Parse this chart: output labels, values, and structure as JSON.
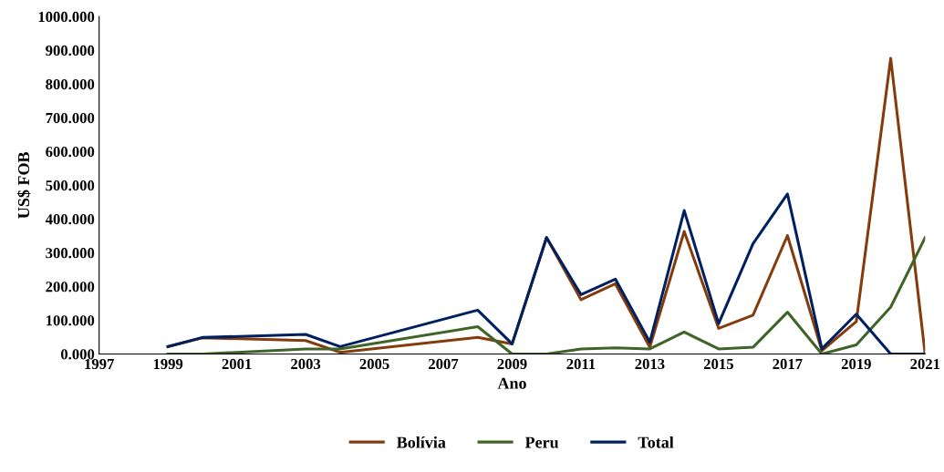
{
  "chart_data": {
    "type": "line",
    "xlabel": "Ano",
    "ylabel": "US$ FOB",
    "x": [
      1999,
      2000,
      2003,
      2004,
      2008,
      2009,
      2010,
      2011,
      2012,
      2013,
      2014,
      2015,
      2016,
      2017,
      2018,
      2019,
      2020,
      2021
    ],
    "series": [
      {
        "name": "Bolívia",
        "color": "#843c0c",
        "values": [
          22,
          48,
          40,
          5,
          49,
          30,
          345,
          161,
          208,
          20,
          363,
          76,
          115,
          351,
          10,
          96,
          876,
          0
        ]
      },
      {
        "name": "Peru",
        "color": "#3f6427",
        "values": [
          0,
          0,
          15,
          15,
          81,
          0,
          0,
          15,
          18,
          15,
          65,
          15,
          20,
          124,
          0,
          27,
          139,
          345
        ]
      },
      {
        "name": "Total",
        "color": "#002060",
        "values": [
          22,
          49,
          58,
          22,
          130,
          30,
          345,
          176,
          222,
          35,
          425,
          90,
          327,
          474,
          15,
          118,
          0,
          0
        ]
      }
    ],
    "xlim": [
      1997,
      2021
    ],
    "xticks": [
      1997,
      1999,
      2001,
      2003,
      2005,
      2007,
      2009,
      2011,
      2013,
      2015,
      2017,
      2019,
      2021
    ],
    "ylim": [
      0,
      1000
    ],
    "yticks": [
      {
        "value": 0,
        "label": "0.000"
      },
      {
        "value": 100,
        "label": "100.000"
      },
      {
        "value": 200,
        "label": "200.000"
      },
      {
        "value": 300,
        "label": "300.000"
      },
      {
        "value": 400,
        "label": "400.000"
      },
      {
        "value": 500,
        "label": "500.000"
      },
      {
        "value": 600,
        "label": "600.000"
      },
      {
        "value": 700,
        "label": "700.000"
      },
      {
        "value": 800,
        "label": "800.000"
      },
      {
        "value": 900,
        "label": "900.000"
      },
      {
        "value": 1000,
        "label": "1000.000"
      }
    ],
    "grid": false,
    "legend": "bottom",
    "marker": "none",
    "line_style": "solid"
  }
}
